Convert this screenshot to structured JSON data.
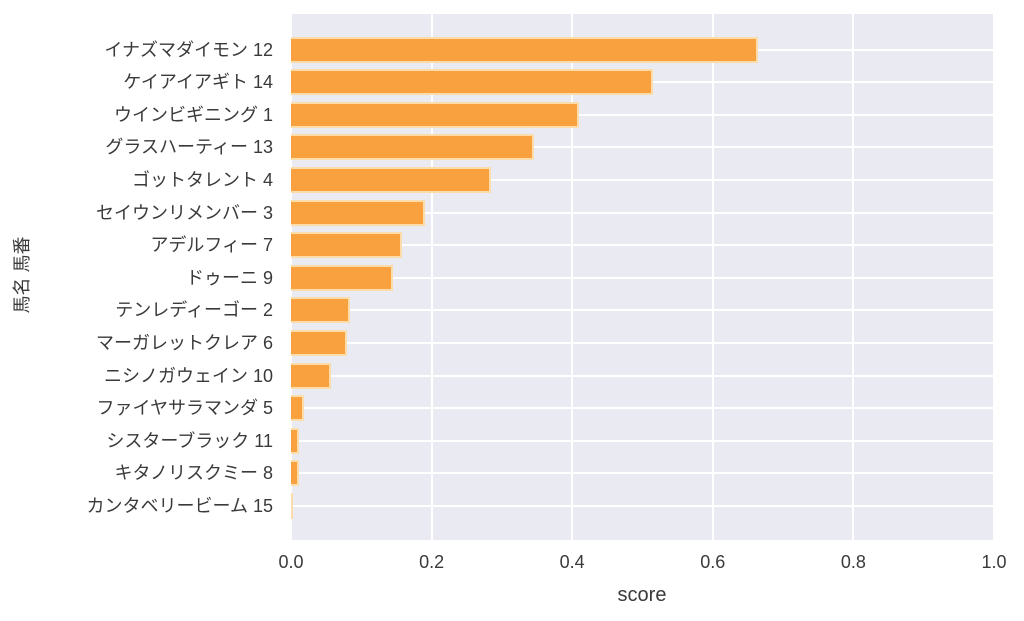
{
  "chart_data": {
    "type": "bar",
    "orientation": "horizontal",
    "title": "",
    "xlabel": "score",
    "ylabel": "馬名 馬番",
    "xlim": [
      0.0,
      1.0
    ],
    "xticks": [
      "0.0",
      "0.2",
      "0.4",
      "0.6",
      "0.8",
      "1.0"
    ],
    "grid": true,
    "legend": false,
    "categories": [
      "イナズマダイモン 12",
      "ケイアイアギト 14",
      "ウインビギニング 1",
      "グラスハーティー 13",
      "ゴットタレント 4",
      "セイウンリメンバー 3",
      "アデルフィー 7",
      "ドゥーニ 9",
      "テンレディーゴー 2",
      "マーガレットクレア 6",
      "ニシノガウェイン 10",
      "ファイヤサラマンダ 5",
      "シスターブラック 11",
      "キタノリスクミー 8",
      "カンタベリービーム 15"
    ],
    "values": [
      0.665,
      0.515,
      0.41,
      0.345,
      0.285,
      0.19,
      0.158,
      0.145,
      0.084,
      0.079,
      0.057,
      0.018,
      0.012,
      0.011,
      0.002
    ],
    "colors": {
      "bar": "#F9A13E",
      "bar_edge": "#FBDCAB",
      "plot_background": "#EAEAF2",
      "grid": "#FFFFFF",
      "text": "#3A3A3A",
      "page_background": "#FFFFFF"
    }
  }
}
